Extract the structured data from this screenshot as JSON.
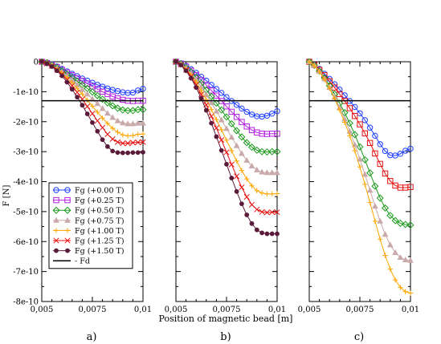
{
  "figure": {
    "ylabel": "F [N]",
    "xlabel": "Position of magnetic bead [m]",
    "panel_labels": [
      "a)",
      "b)",
      "c)"
    ]
  },
  "chart_data": [
    {
      "type": "line",
      "panel": "a)",
      "xlim": [
        0.005,
        0.01
      ],
      "ylim": [
        -8e-10,
        0
      ],
      "x_ticks": [
        "0,005",
        "0,0075",
        "0,01"
      ],
      "y_ticks": [
        "0",
        "-1e-10",
        "-2e-10",
        "-3e-10",
        "-4e-10",
        "-5e-10",
        "-6e-10",
        "-7e-10",
        "-8e-10"
      ],
      "legend": "inside lower-left",
      "x": [
        0.005,
        0.00525,
        0.0055,
        0.00575,
        0.006,
        0.00625,
        0.0065,
        0.00675,
        0.007,
        0.00725,
        0.0075,
        0.00775,
        0.008,
        0.00825,
        0.0085,
        0.00875,
        0.009,
        0.00925,
        0.0095,
        0.00975,
        0.01
      ],
      "series": [
        {
          "name": "Fg (+0.00 T)",
          "color": "#1f3fff",
          "marker": "circle",
          "values": [
            0,
            -3e-12,
            -9e-12,
            -1.6e-11,
            -2.4e-11,
            -3.2e-11,
            -4e-11,
            -4.8e-11,
            -5.6e-11,
            -6.3e-11,
            -7e-11,
            -7.7e-11,
            -8.3e-11,
            -8.9e-11,
            -9.4e-11,
            -9.8e-11,
            -1.02e-10,
            -1.04e-10,
            -1.03e-10,
            -9.6e-11,
            -9e-11
          ]
        },
        {
          "name": "Fg (+0.25 T)",
          "color": "#b21fe0",
          "marker": "square",
          "values": [
            0,
            -4e-12,
            -1e-11,
            -1.8e-11,
            -2.7e-11,
            -3.6e-11,
            -4.5e-11,
            -5.5e-11,
            -6.4e-11,
            -7.3e-11,
            -8.2e-11,
            -9.1e-11,
            -1e-10,
            -1.08e-10,
            -1.16e-10,
            -1.22e-10,
            -1.27e-10,
            -1.3e-10,
            -1.31e-10,
            -1.3e-10,
            -1.3e-10
          ]
        },
        {
          "name": "Fg (+0.50 T)",
          "color": "#1a9a1a",
          "marker": "diamond",
          "values": [
            0,
            -4e-12,
            -1.1e-11,
            -2e-11,
            -3e-11,
            -4.1e-11,
            -5.3e-11,
            -6.5e-11,
            -7.7e-11,
            -8.9e-11,
            -1.01e-10,
            -1.13e-10,
            -1.25e-10,
            -1.37e-10,
            -1.47e-10,
            -1.55e-10,
            -1.61e-10,
            -1.63e-10,
            -1.63e-10,
            -1.6e-10,
            -1.6e-10
          ]
        },
        {
          "name": "Fg (+0.75 T)",
          "color": "#c9a9a9",
          "marker": "triangle",
          "values": [
            0,
            -5e-12,
            -1.2e-11,
            -2.2e-11,
            -3.4e-11,
            -4.7e-11,
            -6.2e-11,
            -7.7e-11,
            -9.3e-11,
            -1.08e-10,
            -1.24e-10,
            -1.4e-10,
            -1.56e-10,
            -1.72e-10,
            -1.86e-10,
            -1.97e-10,
            -2.04e-10,
            -2.07e-10,
            -2.07e-10,
            -2.05e-10,
            -2.05e-10
          ]
        },
        {
          "name": "Fg (+1.00 T)",
          "color": "#ffa500",
          "marker": "plus",
          "values": [
            0,
            -5e-12,
            -1.3e-11,
            -2.4e-11,
            -3.7e-11,
            -5.3e-11,
            -7e-11,
            -8.9e-11,
            -1.08e-10,
            -1.28e-10,
            -1.48e-10,
            -1.68e-10,
            -1.88e-10,
            -2.06e-10,
            -2.22e-10,
            -2.35e-10,
            -2.44e-10,
            -2.47e-10,
            -2.46e-10,
            -2.42e-10,
            -2.41e-10
          ]
        },
        {
          "name": "Fg (+1.25 T)",
          "color": "#e81010",
          "marker": "x",
          "values": [
            0,
            -6e-12,
            -1.5e-11,
            -2.7e-11,
            -4.2e-11,
            -6e-11,
            -8e-11,
            -1.02e-10,
            -1.25e-10,
            -1.49e-10,
            -1.73e-10,
            -1.97e-10,
            -2.2e-10,
            -2.42e-10,
            -2.58e-10,
            -2.68e-10,
            -2.72e-10,
            -2.72e-10,
            -2.7e-10,
            -2.69e-10,
            -2.68e-10
          ]
        },
        {
          "name": "Fg (+1.50 T)",
          "color": "#5a1a3a",
          "marker": "dot",
          "values": [
            0,
            -6e-12,
            -1.6e-11,
            -3e-11,
            -4.7e-11,
            -6.8e-11,
            -9.2e-11,
            -1.18e-10,
            -1.45e-10,
            -1.74e-10,
            -2.03e-10,
            -2.32e-10,
            -2.6e-10,
            -2.83e-10,
            -2.98e-10,
            -3.03e-10,
            -3.04e-10,
            -3.04e-10,
            -3.03e-10,
            -3.03e-10,
            -3.02e-10
          ]
        },
        {
          "name": "- Fd",
          "color": "#000000",
          "marker": "none",
          "style": "flat",
          "values": [
            -1.3e-10,
            -1.3e-10,
            -1.3e-10,
            -1.3e-10,
            -1.3e-10,
            -1.3e-10,
            -1.3e-10,
            -1.3e-10,
            -1.3e-10,
            -1.3e-10,
            -1.3e-10,
            -1.3e-10,
            -1.3e-10,
            -1.3e-10,
            -1.3e-10,
            -1.3e-10,
            -1.3e-10,
            -1.3e-10,
            -1.3e-10,
            -1.3e-10,
            -1.3e-10
          ]
        }
      ]
    },
    {
      "type": "line",
      "panel": "b)",
      "xlim": [
        0.005,
        0.01
      ],
      "ylim": [
        -8e-10,
        0
      ],
      "x_ticks": [
        "0,005",
        "0,0075",
        "0,01"
      ],
      "x": [
        0.005,
        0.00525,
        0.0055,
        0.00575,
        0.006,
        0.00625,
        0.0065,
        0.00675,
        0.007,
        0.00725,
        0.0075,
        0.00775,
        0.008,
        0.00825,
        0.0085,
        0.00875,
        0.009,
        0.00925,
        0.0095,
        0.00975,
        0.01
      ],
      "series": [
        {
          "name": "Fg (+0.00 T)",
          "color": "#1f3fff",
          "marker": "circle",
          "values": [
            0,
            -5e-12,
            -1.4e-11,
            -2.5e-11,
            -3.7e-11,
            -5e-11,
            -6.3e-11,
            -7.7e-11,
            -9.1e-11,
            -1.04e-10,
            -1.18e-10,
            -1.31e-10,
            -1.44e-10,
            -1.56e-10,
            -1.67e-10,
            -1.76e-10,
            -1.82e-10,
            -1.83e-10,
            -1.8e-10,
            -1.73e-10,
            -1.65e-10
          ]
        },
        {
          "name": "Fg (+0.25 T)",
          "color": "#b21fe0",
          "marker": "square",
          "values": [
            0,
            -6e-12,
            -1.6e-11,
            -3e-11,
            -4.5e-11,
            -6.1e-11,
            -7.8e-11,
            -9.6e-11,
            -1.13e-10,
            -1.31e-10,
            -1.49e-10,
            -1.67e-10,
            -1.84e-10,
            -2.01e-10,
            -2.16e-10,
            -2.28e-10,
            -2.36e-10,
            -2.4e-10,
            -2.41e-10,
            -2.4e-10,
            -2.4e-10
          ]
        },
        {
          "name": "Fg (+0.50 T)",
          "color": "#1a9a1a",
          "marker": "diamond",
          "values": [
            0,
            -7e-12,
            -1.9e-11,
            -3.4e-11,
            -5.2e-11,
            -7.2e-11,
            -9.4e-11,
            -1.16e-10,
            -1.38e-10,
            -1.61e-10,
            -1.84e-10,
            -2.07e-10,
            -2.3e-10,
            -2.51e-10,
            -2.7e-10,
            -2.85e-10,
            -2.95e-10,
            -3e-10,
            -3.01e-10,
            -3e-10,
            -3e-10
          ]
        },
        {
          "name": "Fg (+0.75 T)",
          "color": "#c9a9a9",
          "marker": "triangle",
          "values": [
            0,
            -8e-12,
            -2.1e-11,
            -3.9e-11,
            -6e-11,
            -8.4e-11,
            -1.1e-10,
            -1.37e-10,
            -1.65e-10,
            -1.94e-10,
            -2.23e-10,
            -2.52e-10,
            -2.8e-10,
            -3.06e-10,
            -3.29e-10,
            -3.48e-10,
            -3.61e-10,
            -3.68e-10,
            -3.7e-10,
            -3.7e-10,
            -3.7e-10
          ]
        },
        {
          "name": "Fg (+1.00 T)",
          "color": "#ffa500",
          "marker": "plus",
          "values": [
            0,
            -9e-12,
            -2.4e-11,
            -4.4e-11,
            -6.8e-11,
            -9.6e-11,
            -1.27e-10,
            -1.59e-10,
            -1.93e-10,
            -2.27e-10,
            -2.62e-10,
            -2.97e-10,
            -3.31e-10,
            -3.63e-10,
            -3.91e-10,
            -4.14e-10,
            -4.3e-10,
            -4.38e-10,
            -4.41e-10,
            -4.41e-10,
            -4.4e-10
          ]
        },
        {
          "name": "Fg (+1.25 T)",
          "color": "#e81010",
          "marker": "x",
          "values": [
            0,
            -1e-11,
            -2.7e-11,
            -4.9e-11,
            -7.7e-11,
            -1.09e-10,
            -1.44e-10,
            -1.82e-10,
            -2.21e-10,
            -2.61e-10,
            -3.02e-10,
            -3.43e-10,
            -3.82e-10,
            -4.19e-10,
            -4.51e-10,
            -4.77e-10,
            -4.93e-10,
            -5.01e-10,
            -5.03e-10,
            -5.02e-10,
            -5.02e-10
          ]
        },
        {
          "name": "Fg (+1.50 T)",
          "color": "#5a1a3a",
          "marker": "dot",
          "values": [
            0,
            -1.1e-11,
            -3e-11,
            -5.5e-11,
            -8.6e-11,
            -1.22e-10,
            -1.62e-10,
            -2.05e-10,
            -2.5e-10,
            -2.96e-10,
            -3.42e-10,
            -3.88e-10,
            -4.33e-10,
            -4.74e-10,
            -5.11e-10,
            -5.4e-10,
            -5.61e-10,
            -5.71e-10,
            -5.74e-10,
            -5.74e-10,
            -5.74e-10
          ]
        },
        {
          "name": "- Fd",
          "color": "#000000",
          "marker": "none",
          "style": "flat",
          "values": [
            -1.3e-10,
            -1.3e-10,
            -1.3e-10,
            -1.3e-10,
            -1.3e-10,
            -1.3e-10,
            -1.3e-10,
            -1.3e-10,
            -1.3e-10,
            -1.3e-10,
            -1.3e-10,
            -1.3e-10,
            -1.3e-10,
            -1.3e-10,
            -1.3e-10,
            -1.3e-10,
            -1.3e-10,
            -1.3e-10,
            -1.3e-10,
            -1.3e-10,
            -1.3e-10
          ]
        }
      ]
    },
    {
      "type": "line",
      "panel": "c)",
      "xlim": [
        0.005,
        0.01
      ],
      "ylim": [
        -8e-10,
        0
      ],
      "x_ticks": [
        "0,005",
        "0,0075",
        "0,01"
      ],
      "x": [
        0.005,
        0.00525,
        0.0055,
        0.00575,
        0.006,
        0.00625,
        0.0065,
        0.00675,
        0.007,
        0.00725,
        0.0075,
        0.00775,
        0.008,
        0.00825,
        0.0085,
        0.00875,
        0.009,
        0.00925,
        0.0095,
        0.00975,
        0.01
      ],
      "series": [
        {
          "name": "Fg (+0.00 T)",
          "color": "#1f3fff",
          "marker": "circle",
          "values": [
            0,
            -1e-11,
            -2.4e-11,
            -4e-11,
            -5.7e-11,
            -7.5e-11,
            -9.3e-11,
            -1.12e-10,
            -1.31e-10,
            -1.51e-10,
            -1.72e-10,
            -1.95e-10,
            -2.2e-10,
            -2.47e-10,
            -2.75e-10,
            -2.98e-10,
            -3.12e-10,
            -3.13e-10,
            -3.07e-10,
            -2.97e-10,
            -2.9e-10
          ]
        },
        {
          "name": "Fg (+1.25 T)",
          "color": "#e81010",
          "marker": "square",
          "values": [
            0,
            -1.1e-11,
            -2.7e-11,
            -4.5e-11,
            -6.5e-11,
            -8.6e-11,
            -1.08e-10,
            -1.31e-10,
            -1.55e-10,
            -1.81e-10,
            -2.09e-10,
            -2.39e-10,
            -2.71e-10,
            -3.06e-10,
            -3.41e-10,
            -3.73e-10,
            -3.98e-10,
            -4.13e-10,
            -4.2e-10,
            -4.2e-10,
            -4.18e-10
          ]
        },
        {
          "name": "Fg (+0.50 T)",
          "color": "#1a9a1a",
          "marker": "diamond",
          "values": [
            0,
            -1.2e-11,
            -3.1e-11,
            -5.4e-11,
            -8e-11,
            -1.08e-10,
            -1.38e-10,
            -1.7e-10,
            -2.05e-10,
            -2.43e-10,
            -2.84e-10,
            -3.27e-10,
            -3.71e-10,
            -4.15e-10,
            -4.55e-10,
            -4.88e-10,
            -5.13e-10,
            -5.3e-10,
            -5.39e-10,
            -5.43e-10,
            -5.45e-10
          ]
        },
        {
          "name": "Fg (+0.75 T)",
          "color": "#c9a9a9",
          "marker": "triangle",
          "values": [
            0,
            -1.2e-11,
            -3.2e-11,
            -5.7e-11,
            -8.6e-11,
            -1.18e-10,
            -1.53e-10,
            -1.91e-10,
            -2.32e-10,
            -2.77e-10,
            -3.25e-10,
            -3.76e-10,
            -4.29e-10,
            -4.82e-10,
            -5.32e-10,
            -5.76e-10,
            -6.11e-10,
            -6.37e-10,
            -6.53e-10,
            -6.61e-10,
            -6.63e-10
          ]
        },
        {
          "name": "Fg (+1.00 T)",
          "color": "#ffa500",
          "marker": "plus",
          "values": [
            0,
            -1.3e-11,
            -3.3e-11,
            -5.9e-11,
            -8.9e-11,
            -1.23e-10,
            -1.61e-10,
            -2.02e-10,
            -2.47e-10,
            -2.97e-10,
            -3.51e-10,
            -4.09e-10,
            -4.7e-10,
            -5.32e-10,
            -5.92e-10,
            -6.46e-10,
            -6.92e-10,
            -7.28e-10,
            -7.53e-10,
            -7.67e-10,
            -7.72e-10
          ]
        },
        {
          "name": "- Fd",
          "color": "#000000",
          "marker": "none",
          "style": "flat",
          "values": [
            -1.3e-10,
            -1.3e-10,
            -1.3e-10,
            -1.3e-10,
            -1.3e-10,
            -1.3e-10,
            -1.3e-10,
            -1.3e-10,
            -1.3e-10,
            -1.3e-10,
            -1.3e-10,
            -1.3e-10,
            -1.3e-10,
            -1.3e-10,
            -1.3e-10,
            -1.3e-10,
            -1.3e-10,
            -1.3e-10,
            -1.3e-10,
            -1.3e-10,
            -1.3e-10
          ]
        }
      ]
    }
  ]
}
